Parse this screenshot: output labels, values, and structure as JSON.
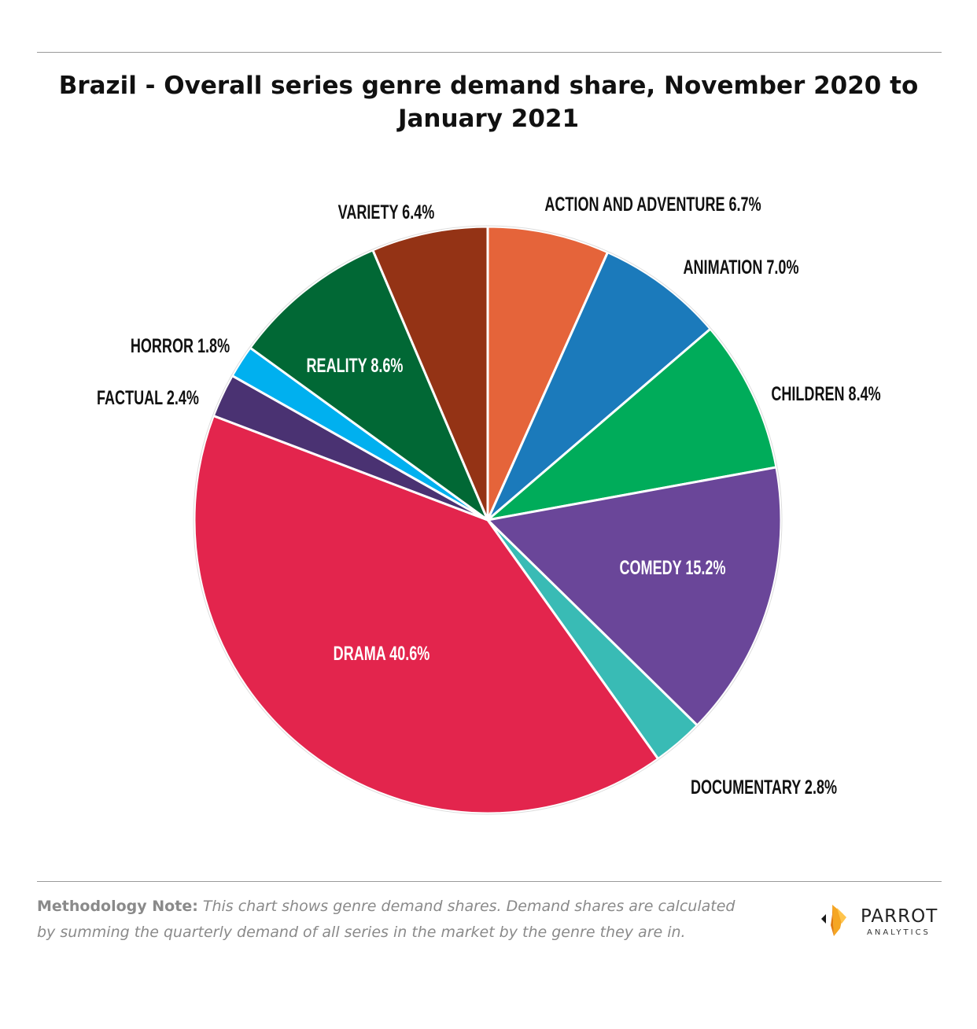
{
  "title": "Brazil - Overall series genre demand share, November 2020 to January 2021",
  "chart_data": {
    "type": "pie",
    "title": "Brazil - Overall series genre demand share, November 2020 to January 2021",
    "unit": "%",
    "slices": [
      {
        "label": "ACTION AND ADVENTURE",
        "value": 6.7,
        "value_text": "6.7%",
        "color": "#e5643a",
        "label_color": "#111111"
      },
      {
        "label": "ANIMATION",
        "value": 7.0,
        "value_text": "7.0%",
        "color": "#1b7abb",
        "label_color": "#111111"
      },
      {
        "label": "CHILDREN",
        "value": 8.4,
        "value_text": "8.4%",
        "color": "#00ac5a",
        "label_color": "#111111"
      },
      {
        "label": "COMEDY",
        "value": 15.2,
        "value_text": "15.2%",
        "color": "#6a4699",
        "label_color": "#ffffff"
      },
      {
        "label": "DOCUMENTARY",
        "value": 2.8,
        "value_text": "2.8%",
        "color": "#39bbb5",
        "label_color": "#111111"
      },
      {
        "label": "DRAMA",
        "value": 40.6,
        "value_text": "40.6%",
        "color": "#e3254d",
        "label_color": "#ffffff"
      },
      {
        "label": "FACTUAL",
        "value": 2.4,
        "value_text": "2.4%",
        "color": "#4a3272",
        "label_color": "#111111"
      },
      {
        "label": "HORROR",
        "value": 1.8,
        "value_text": "1.8%",
        "color": "#00b0ef",
        "label_color": "#111111"
      },
      {
        "label": "REALITY",
        "value": 8.6,
        "value_text": "8.6%",
        "color": "#016835",
        "label_color": "#ffffff"
      },
      {
        "label": "VARIETY",
        "value": 6.4,
        "value_text": "6.4%",
        "color": "#943315",
        "label_color": "#111111"
      }
    ]
  },
  "footer": {
    "note_lead": "Methodology Note:",
    "note_body": "This chart shows genre demand shares. Demand shares are calculated by summing the quarterly demand of all series in the market by the genre they are in."
  },
  "logo": {
    "name": "PARROT",
    "subtitle": "ANALYTICS",
    "icon": "parrot-logo-icon",
    "colors": {
      "accent": "#f5a623",
      "dark": "#1a1a1a"
    }
  }
}
